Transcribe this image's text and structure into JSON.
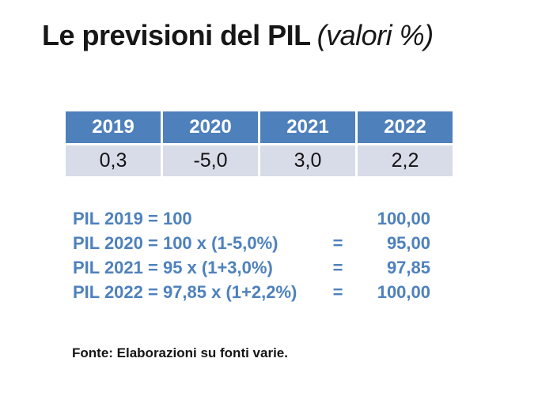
{
  "slide": {
    "title": {
      "main": "Le previsioni del PIL",
      "sub": "(valori %)"
    },
    "table": {
      "headers": [
        "2019",
        "2020",
        "2021",
        "2022"
      ],
      "values": [
        "0,3",
        "-5,0",
        "3,0",
        "2,2"
      ]
    },
    "calculations": [
      {
        "expression": "PIL 2019 = 100",
        "equals": "",
        "value": "100,00"
      },
      {
        "expression": "PIL 2020 = 100 x (1-5,0%)",
        "equals": "=",
        "value": "95,00"
      },
      {
        "expression": "PIL 2021 = 95 x (1+3,0%)",
        "equals": "=",
        "value": "97,85"
      },
      {
        "expression": "PIL 2022 = 97,85 x (1+2,2%)",
        "equals": "=",
        "value": "100,00"
      }
    ],
    "source_note": "Fonte: Elaborazioni su fonti varie.",
    "colors": {
      "header_bg": "#4E80BC",
      "row_bg": "#D8DBE8",
      "accent_text": "#4E81BD",
      "title_text": "#171717"
    }
  }
}
